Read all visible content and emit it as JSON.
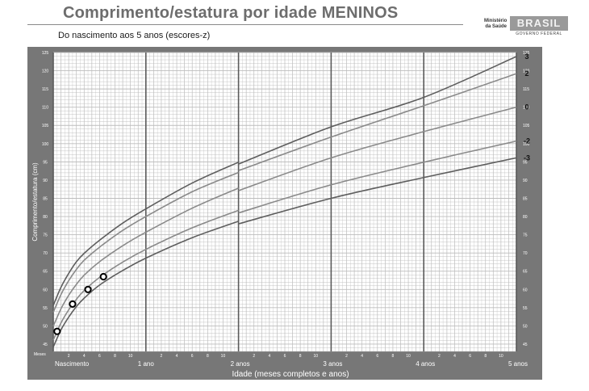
{
  "header": {
    "title": "Comprimento/estatura por idade MENINOS",
    "subtitle": "Do nascimento aos 5 anos (escores-z)",
    "logo_ministry": "Ministério da Saúde",
    "logo_brand": "BRASIL",
    "logo_gov": "GOVERNO FEDERAL"
  },
  "colors": {
    "panel": "#777777",
    "plot_bg": "#ffffff",
    "grid_minor": "#bdbdbd",
    "grid_year": "#5a5a5a",
    "curve_outer": "#5e5e5e",
    "curve_inner": "#8a8a8a",
    "point": "#000000"
  },
  "chart_data": {
    "type": "line",
    "xlabel": "Idade (meses completos e anos)",
    "ylabel": "Comprimento/estatura (cm)",
    "xlim": [
      0,
      60
    ],
    "ylim": [
      43,
      125
    ],
    "y_ticks": [
      45,
      50,
      55,
      60,
      65,
      70,
      75,
      80,
      85,
      90,
      95,
      100,
      105,
      110,
      115,
      120,
      125
    ],
    "x_unit_label": "Meses",
    "x_tick_labels": [
      {
        "x": 2,
        "label": "2"
      },
      {
        "x": 4,
        "label": "4"
      },
      {
        "x": 6,
        "label": "6"
      },
      {
        "x": 8,
        "label": "8"
      },
      {
        "x": 10,
        "label": "10"
      },
      {
        "x": 14,
        "label": "2"
      },
      {
        "x": 16,
        "label": "4"
      },
      {
        "x": 18,
        "label": "6"
      },
      {
        "x": 20,
        "label": "8"
      },
      {
        "x": 22,
        "label": "10"
      },
      {
        "x": 26,
        "label": "2"
      },
      {
        "x": 28,
        "label": "4"
      },
      {
        "x": 30,
        "label": "6"
      },
      {
        "x": 32,
        "label": "8"
      },
      {
        "x": 34,
        "label": "10"
      },
      {
        "x": 38,
        "label": "2"
      },
      {
        "x": 40,
        "label": "4"
      },
      {
        "x": 42,
        "label": "6"
      },
      {
        "x": 44,
        "label": "8"
      },
      {
        "x": 46,
        "label": "10"
      },
      {
        "x": 50,
        "label": "2"
      },
      {
        "x": 52,
        "label": "4"
      },
      {
        "x": 54,
        "label": "6"
      },
      {
        "x": 56,
        "label": "8"
      },
      {
        "x": 58,
        "label": "10"
      }
    ],
    "x_year_labels": [
      {
        "x": 0,
        "label": "Nascimento"
      },
      {
        "x": 12,
        "label": "1 ano"
      },
      {
        "x": 24,
        "label": "2 anos"
      },
      {
        "x": 36,
        "label": "3 anos"
      },
      {
        "x": 48,
        "label": "4 anos"
      },
      {
        "x": 60,
        "label": "5 anos"
      }
    ],
    "grid": true,
    "series": [
      {
        "name": "3",
        "role": "outer",
        "x": [
          0,
          1,
          2,
          3,
          4,
          6,
          9,
          12,
          18,
          24,
          24.01,
          36,
          48,
          60
        ],
        "y": [
          55.6,
          60.6,
          64.4,
          67.6,
          69.9,
          73.5,
          78.2,
          82.1,
          89.2,
          94.9,
          94.4,
          104.6,
          112.7,
          123.9
        ]
      },
      {
        "name": "2",
        "role": "inner",
        "x": [
          0,
          1,
          2,
          3,
          4,
          6,
          9,
          12,
          18,
          24,
          24.01,
          36,
          48,
          60
        ],
        "y": [
          53.7,
          58.6,
          62.4,
          65.5,
          68.0,
          71.6,
          76.2,
          80.0,
          86.8,
          92.1,
          92.6,
          101.8,
          110.4,
          119.2
        ]
      },
      {
        "name": "0",
        "role": "inner",
        "x": [
          0,
          1,
          2,
          3,
          4,
          6,
          9,
          12,
          18,
          24,
          24.01,
          36,
          48,
          60
        ],
        "y": [
          49.9,
          54.7,
          58.4,
          61.4,
          63.9,
          67.6,
          72.0,
          75.7,
          82.3,
          87.8,
          87.1,
          96.1,
          103.3,
          110.0
        ]
      },
      {
        "name": "-2",
        "role": "inner",
        "x": [
          0,
          1,
          2,
          3,
          4,
          6,
          9,
          12,
          18,
          24,
          24.01,
          36,
          48,
          60
        ],
        "y": [
          46.1,
          50.8,
          54.4,
          57.3,
          59.7,
          63.3,
          67.5,
          71.0,
          76.9,
          81.7,
          81.0,
          88.7,
          94.9,
          100.7
        ]
      },
      {
        "name": "-3",
        "role": "outer",
        "x": [
          0,
          1,
          2,
          3,
          4,
          6,
          9,
          12,
          18,
          24,
          24.01,
          36,
          48,
          60
        ],
        "y": [
          44.2,
          48.9,
          52.4,
          55.3,
          57.6,
          61.2,
          65.2,
          68.6,
          74.2,
          78.7,
          78.0,
          85.0,
          90.7,
          96.1
        ]
      }
    ],
    "points": [
      {
        "x": 0.5,
        "y": 48.5
      },
      {
        "x": 2.5,
        "y": 56.0
      },
      {
        "x": 4.5,
        "y": 60.0
      },
      {
        "x": 6.5,
        "y": 63.5
      }
    ]
  }
}
